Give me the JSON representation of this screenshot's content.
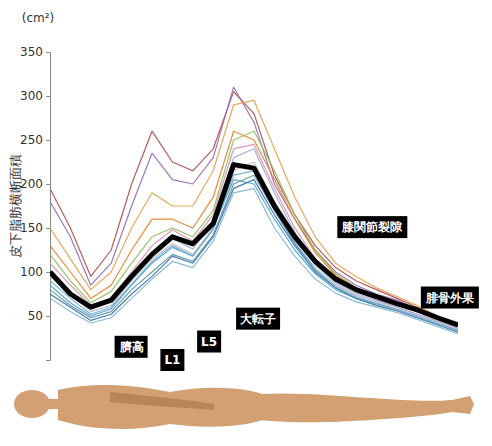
{
  "chart_data": {
    "type": "line",
    "y_label": "皮下脂肪横断面積",
    "y_unit": "(cm²)",
    "x": [
      0,
      5,
      10,
      15,
      20,
      25,
      30,
      35,
      40,
      45,
      50,
      55,
      60,
      65,
      70,
      75,
      80,
      85,
      90,
      95,
      100
    ],
    "xlim": [
      0,
      100
    ],
    "ylim": [
      0,
      350
    ],
    "yticks": [
      50,
      100,
      150,
      200,
      250,
      300,
      350
    ],
    "grid": false,
    "tick_labels": "y",
    "series": [
      {
        "color": "#b04a4a",
        "values": [
          195,
          150,
          95,
          125,
          200,
          260,
          225,
          215,
          240,
          305,
          280,
          210,
          165,
          130,
          105,
          90,
          80,
          70,
          60,
          48,
          40
        ]
      },
      {
        "color": "#8e6bb5",
        "values": [
          180,
          140,
          85,
          110,
          175,
          235,
          205,
          200,
          230,
          310,
          270,
          200,
          160,
          125,
          100,
          85,
          75,
          68,
          58,
          46,
          38
        ]
      },
      {
        "color": "#e0a050",
        "values": [
          150,
          115,
          80,
          100,
          150,
          190,
          175,
          175,
          215,
          290,
          295,
          240,
          185,
          140,
          110,
          95,
          82,
          72,
          62,
          50,
          40
        ]
      },
      {
        "color": "#8fbf5a",
        "values": [
          120,
          90,
          65,
          78,
          110,
          140,
          150,
          140,
          170,
          250,
          260,
          215,
          165,
          125,
          98,
          82,
          72,
          64,
          56,
          46,
          36
        ]
      },
      {
        "color": "#4aa3c8",
        "values": [
          85,
          65,
          50,
          58,
          85,
          110,
          128,
          118,
          150,
          205,
          200,
          160,
          125,
          98,
          80,
          70,
          64,
          58,
          50,
          42,
          34
        ]
      },
      {
        "color": "#3a6fb0",
        "values": [
          75,
          60,
          45,
          52,
          75,
          95,
          118,
          110,
          140,
          195,
          205,
          165,
          130,
          100,
          82,
          70,
          62,
          56,
          48,
          40,
          32
        ]
      },
      {
        "color": "#d98fb0",
        "values": [
          110,
          85,
          62,
          70,
          100,
          130,
          148,
          135,
          165,
          240,
          245,
          195,
          150,
          115,
          90,
          78,
          68,
          60,
          52,
          44,
          36
        ]
      },
      {
        "color": "#7fb3d5",
        "values": [
          70,
          55,
          42,
          48,
          70,
          92,
          112,
          105,
          135,
          190,
          195,
          150,
          118,
          92,
          76,
          66,
          60,
          54,
          46,
          38,
          30
        ]
      },
      {
        "color": "#b8b8b8",
        "values": [
          95,
          75,
          55,
          62,
          90,
          115,
          132,
          120,
          150,
          215,
          225,
          180,
          140,
          108,
          86,
          74,
          66,
          58,
          50,
          42,
          34
        ]
      },
      {
        "color": "#5a8f9f",
        "values": [
          80,
          62,
          48,
          55,
          80,
          100,
          120,
          112,
          142,
          200,
          210,
          170,
          132,
          102,
          82,
          70,
          62,
          56,
          48,
          40,
          32
        ]
      },
      {
        "color": "#a0a8d8",
        "values": [
          100,
          78,
          58,
          66,
          94,
          122,
          138,
          126,
          158,
          230,
          240,
          190,
          145,
          112,
          88,
          76,
          68,
          60,
          52,
          44,
          36
        ]
      },
      {
        "color": "#e67e22",
        "values": [
          130,
          100,
          70,
          85,
          125,
          160,
          160,
          150,
          185,
          260,
          250,
          205,
          160,
          122,
          96,
          82,
          72,
          64,
          56,
          46,
          38
        ]
      },
      {
        "color": "#6fa8dc",
        "values": [
          90,
          70,
          52,
          60,
          86,
          112,
          130,
          118,
          148,
          210,
          215,
          172,
          134,
          104,
          84,
          72,
          64,
          57,
          49,
          41,
          33
        ]
      },
      {
        "color": "#000000",
        "line_style": "bold",
        "values": [
          100,
          75,
          60,
          68,
          95,
          120,
          140,
          132,
          155,
          222,
          218,
          175,
          140,
          112,
          92,
          80,
          72,
          64,
          57,
          48,
          40
        ]
      }
    ],
    "annotations": [
      {
        "text": "臍高",
        "x": 20,
        "y": 15
      },
      {
        "text": "L1",
        "x": 30,
        "y": 0
      },
      {
        "text": "L5",
        "x": 39,
        "y": 21
      },
      {
        "text": "大転子",
        "x": 51,
        "y": 47
      },
      {
        "text": "膝関節裂隙",
        "x": 79,
        "y": 151
      },
      {
        "text": "腓骨外果",
        "x": 98,
        "y": 71
      }
    ]
  }
}
